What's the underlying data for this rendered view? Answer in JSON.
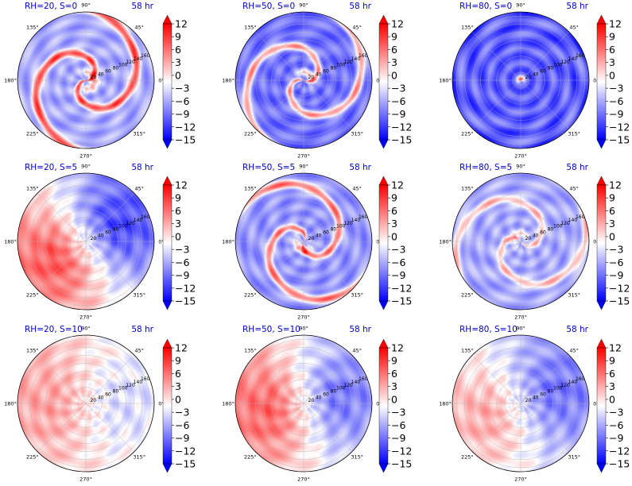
{
  "chart_data": [
    {
      "type": "heatmap",
      "projection": "polar",
      "title_left": "RH=20, S=0",
      "title_right": "58 hr",
      "theta_ticks": [
        "90°",
        "45°",
        "0°",
        "315°",
        "270°",
        "225°",
        "180°",
        "135°"
      ],
      "r_ticks": [
        "20",
        "40",
        "60",
        "80",
        "100",
        "120",
        "140",
        "160"
      ],
      "colorbar": {
        "ticks": [
          "12",
          "9",
          "6",
          "3",
          "0",
          "−3",
          "−6",
          "−9",
          "−12",
          "−15"
        ],
        "range": [
          -15,
          12
        ],
        "colormap": "bwr",
        "extend": "both"
      },
      "pattern": "spiral",
      "mean": -6,
      "amplitude": 9,
      "phase_deg": 0,
      "grid": true
    },
    {
      "type": "heatmap",
      "projection": "polar",
      "title_left": "RH=50, S=0",
      "title_right": "58 hr",
      "theta_ticks": [
        "90°",
        "45°",
        "0°",
        "315°",
        "270°",
        "225°",
        "180°",
        "135°"
      ],
      "r_ticks": [
        "20",
        "40",
        "60",
        "80",
        "100",
        "120",
        "140",
        "160"
      ],
      "colorbar": {
        "ticks": [
          "12",
          "9",
          "6",
          "3",
          "0",
          "−3",
          "−6",
          "−9",
          "−12",
          "−15"
        ],
        "range": [
          -15,
          12
        ],
        "colormap": "bwr",
        "extend": "both"
      },
      "pattern": "spiral",
      "mean": -9,
      "amplitude": 8,
      "phase_deg": 60,
      "grid": true
    },
    {
      "type": "heatmap",
      "projection": "polar",
      "title_left": "RH=80, S=0",
      "title_right": "58 hr",
      "theta_ticks": [
        "90°",
        "45°",
        "0°",
        "315°",
        "270°",
        "225°",
        "180°",
        "135°"
      ],
      "r_ticks": [
        "20",
        "40",
        "60",
        "80",
        "100",
        "120",
        "140",
        "160"
      ],
      "colorbar": {
        "ticks": [
          "12",
          "9",
          "6",
          "3",
          "0",
          "−3",
          "−6",
          "−9",
          "−12",
          "−15"
        ],
        "range": [
          -15,
          12
        ],
        "colormap": "bwr",
        "extend": "both"
      },
      "pattern": "rings",
      "mean": -10,
      "amplitude": 4,
      "phase_deg": 0,
      "grid": true
    },
    {
      "type": "heatmap",
      "projection": "polar",
      "title_left": "RH=20, S=5",
      "title_right": "58 hr",
      "theta_ticks": [
        "90°",
        "45°",
        "0°",
        "315°",
        "270°",
        "225°",
        "180°",
        "135°"
      ],
      "r_ticks": [
        "20",
        "40",
        "60",
        "80",
        "100",
        "120",
        "140",
        "160"
      ],
      "colorbar": {
        "ticks": [
          "12",
          "9",
          "6",
          "3",
          "0",
          "−3",
          "−6",
          "−9",
          "−12",
          "−15"
        ],
        "range": [
          -15,
          12
        ],
        "colormap": "bwr",
        "extend": "both"
      },
      "pattern": "dipole",
      "mean": -2,
      "amplitude": 11,
      "phase_deg": 210,
      "grid": true
    },
    {
      "type": "heatmap",
      "projection": "polar",
      "title_left": "RH=50, S=5",
      "title_right": "58 hr",
      "theta_ticks": [
        "90°",
        "45°",
        "0°",
        "315°",
        "270°",
        "225°",
        "180°",
        "135°"
      ],
      "r_ticks": [
        "20",
        "40",
        "60",
        "80",
        "100",
        "120",
        "140",
        "160"
      ],
      "colorbar": {
        "ticks": [
          "12",
          "9",
          "6",
          "3",
          "0",
          "−3",
          "−6",
          "−9",
          "−12",
          "−15"
        ],
        "range": [
          -15,
          12
        ],
        "colormap": "bwr",
        "extend": "both"
      },
      "pattern": "spiral",
      "mean": -7,
      "amplitude": 8,
      "phase_deg": 240,
      "grid": true
    },
    {
      "type": "heatmap",
      "projection": "polar",
      "title_left": "RH=80, S=5",
      "title_right": "58 hr",
      "theta_ticks": [
        "90°",
        "45°",
        "0°",
        "315°",
        "270°",
        "225°",
        "180°",
        "135°"
      ],
      "r_ticks": [
        "20",
        "40",
        "60",
        "80",
        "100",
        "120",
        "140",
        "160"
      ],
      "colorbar": {
        "ticks": [
          "12",
          "9",
          "6",
          "3",
          "0",
          "−3",
          "−6",
          "−9",
          "−12",
          "−15"
        ],
        "range": [
          -15,
          12
        ],
        "colormap": "bwr",
        "extend": "both"
      },
      "pattern": "spiral",
      "mean": -6,
      "amplitude": 5,
      "phase_deg": 120,
      "grid": true
    },
    {
      "type": "heatmap",
      "projection": "polar",
      "title_left": "RH=20, S=10",
      "title_right": "58 hr",
      "theta_ticks": [
        "90°",
        "45°",
        "0°",
        "315°",
        "270°",
        "225°",
        "180°",
        "135°"
      ],
      "r_ticks": [
        "20",
        "40",
        "60",
        "80",
        "100",
        "120",
        "140",
        "160"
      ],
      "colorbar": {
        "ticks": [
          "12",
          "9",
          "6",
          "3",
          "0",
          "−3",
          "−6",
          "−9",
          "−12",
          "−15"
        ],
        "range": [
          -15,
          12
        ],
        "colormap": "bwr",
        "extend": "both"
      },
      "pattern": "dipole",
      "mean": 0,
      "amplitude": 4,
      "phase_deg": 180,
      "grid": true
    },
    {
      "type": "heatmap",
      "projection": "polar",
      "title_left": "RH=50, S=10",
      "title_right": "58 hr",
      "theta_ticks": [
        "90°",
        "45°",
        "0°",
        "315°",
        "270°",
        "225°",
        "180°",
        "135°"
      ],
      "r_ticks": [
        "20",
        "40",
        "60",
        "80",
        "100",
        "120",
        "140",
        "160"
      ],
      "colorbar": {
        "ticks": [
          "12",
          "9",
          "6",
          "3",
          "0",
          "−3",
          "−6",
          "−9",
          "−12",
          "−15"
        ],
        "range": [
          -15,
          12
        ],
        "colormap": "bwr",
        "extend": "both"
      },
      "pattern": "dipole",
      "mean": -1,
      "amplitude": 9,
      "phase_deg": 190,
      "grid": true
    },
    {
      "type": "heatmap",
      "projection": "polar",
      "title_left": "RH=80, S=10",
      "title_right": "58 hr",
      "theta_ticks": [
        "90°",
        "45°",
        "0°",
        "315°",
        "270°",
        "225°",
        "180°",
        "135°"
      ],
      "r_ticks": [
        "20",
        "40",
        "60",
        "80",
        "100",
        "120",
        "140",
        "160"
      ],
      "colorbar": {
        "ticks": [
          "12",
          "9",
          "6",
          "3",
          "0",
          "−3",
          "−6",
          "−9",
          "−12",
          "−15"
        ],
        "range": [
          -15,
          12
        ],
        "colormap": "bwr",
        "extend": "both"
      },
      "pattern": "dipole",
      "mean": -3,
      "amplitude": 7,
      "phase_deg": 200,
      "grid": true
    }
  ],
  "colors": {
    "title_text": "#0000cc",
    "positive": "#ff0000",
    "negative": "#0000ff",
    "zero": "#ffffff",
    "grid": "#b0b0b0"
  }
}
